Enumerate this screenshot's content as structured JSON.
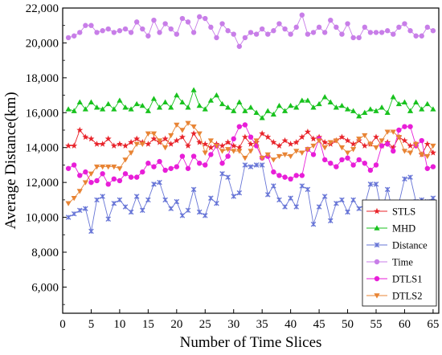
{
  "chart_data": {
    "type": "line",
    "title": "",
    "xlabel": "Number of Time Slices",
    "ylabel": "Average Distance(km)",
    "xlim": [
      0,
      66
    ],
    "ylim": [
      4500,
      22000
    ],
    "xticks": [
      0,
      5,
      10,
      15,
      20,
      25,
      30,
      35,
      40,
      45,
      50,
      55,
      60,
      65
    ],
    "yticks": [
      6000,
      8000,
      10000,
      12000,
      14000,
      16000,
      18000,
      20000,
      22000
    ],
    "ytick_labels": [
      "6,000",
      "8,000",
      "10,000",
      "12,000",
      "14,000",
      "16,000",
      "18,000",
      "20,000",
      "22,000"
    ],
    "grid": false,
    "legend": "bottom-right",
    "x": [
      1,
      2,
      3,
      4,
      5,
      6,
      7,
      8,
      9,
      10,
      11,
      12,
      13,
      14,
      15,
      16,
      17,
      18,
      19,
      20,
      21,
      22,
      23,
      24,
      25,
      26,
      27,
      28,
      29,
      30,
      31,
      32,
      33,
      34,
      35,
      36,
      37,
      38,
      39,
      40,
      41,
      42,
      43,
      44,
      45,
      46,
      47,
      48,
      49,
      50,
      51,
      52,
      53,
      54,
      55,
      56,
      57,
      58,
      59,
      60,
      61,
      62,
      63,
      64,
      65
    ],
    "series": [
      {
        "name": "STLS",
        "color": "#e8232a",
        "marker": "star",
        "values": [
          14100,
          14100,
          15000,
          14600,
          14500,
          14200,
          14200,
          14500,
          14100,
          14200,
          14100,
          14300,
          14500,
          14300,
          14200,
          14500,
          14300,
          14500,
          14200,
          14400,
          14600,
          14100,
          14800,
          14300,
          14200,
          14000,
          14200,
          14100,
          14300,
          14100,
          14000,
          14600,
          14200,
          14300,
          14800,
          14600,
          14300,
          14100,
          14400,
          14200,
          14300,
          14600,
          14900,
          14500,
          14600,
          14300,
          14200,
          14400,
          14600,
          14400,
          14200,
          14400,
          14100,
          14200,
          14600,
          14100,
          14300,
          14000,
          14600,
          14400,
          14100,
          14200,
          13600,
          14200,
          13700
        ]
      },
      {
        "name": "MHD",
        "color": "#18c21e",
        "marker": "triangle-up",
        "values": [
          16200,
          16100,
          16600,
          16200,
          16600,
          16300,
          16200,
          16500,
          16200,
          16700,
          16300,
          16200,
          16500,
          16400,
          16100,
          16800,
          16300,
          16600,
          16300,
          17000,
          16600,
          16300,
          17300,
          16400,
          16200,
          16700,
          17000,
          16500,
          16300,
          16100,
          16600,
          16100,
          16300,
          16000,
          15700,
          16100,
          15900,
          16400,
          16100,
          16400,
          16300,
          16700,
          16700,
          16300,
          16500,
          16900,
          16600,
          16300,
          16400,
          16200,
          16100,
          15800,
          16000,
          16200,
          16100,
          16300,
          16000,
          16900,
          16500,
          16600,
          16100,
          16600,
          16200,
          16500,
          16200
        ]
      },
      {
        "name": "Distance",
        "color": "#6674d6",
        "marker": "x-cross",
        "values": [
          10000,
          10200,
          10400,
          10500,
          9200,
          11000,
          11200,
          9900,
          10800,
          11000,
          10600,
          10300,
          11200,
          10400,
          11000,
          11900,
          12000,
          11000,
          10500,
          10900,
          10100,
          10400,
          11600,
          10300,
          10100,
          11100,
          10800,
          12500,
          12300,
          11200,
          11400,
          13000,
          12900,
          13000,
          13000,
          11300,
          11800,
          11000,
          10600,
          11100,
          10600,
          11800,
          11600,
          9600,
          10600,
          11200,
          9800,
          10800,
          11000,
          10300,
          11000,
          10500,
          10700,
          11900,
          11900,
          10300,
          11600,
          10200,
          10800,
          12200,
          12300,
          10900,
          11000,
          10900,
          11100
        ]
      },
      {
        "name": "Time",
        "color": "#c87ee8",
        "marker": "circle",
        "values": [
          20300,
          20400,
          20600,
          21000,
          21000,
          20600,
          20700,
          20800,
          20600,
          20700,
          20800,
          20600,
          21200,
          20800,
          20400,
          21300,
          20600,
          21100,
          20800,
          20500,
          21400,
          21200,
          20600,
          21500,
          21400,
          20900,
          20300,
          21100,
          20700,
          20500,
          19800,
          20300,
          20600,
          20500,
          20800,
          20500,
          20700,
          21100,
          20800,
          20500,
          20900,
          21600,
          20500,
          20600,
          20900,
          20600,
          21300,
          20900,
          20500,
          21100,
          20300,
          20300,
          20900,
          20600,
          20600,
          20600,
          20700,
          20500,
          20900,
          21100,
          20700,
          20400,
          20400,
          20900,
          20700
        ]
      },
      {
        "name": "DTLS1",
        "color": "#e81ed8",
        "marker": "circle",
        "values": [
          12800,
          13000,
          12400,
          12600,
          12000,
          12100,
          12500,
          11900,
          12200,
          12100,
          12500,
          12300,
          12300,
          12600,
          13100,
          12900,
          13200,
          12700,
          12800,
          12900,
          13500,
          12800,
          13500,
          13100,
          13000,
          13600,
          14100,
          13100,
          13500,
          14500,
          15200,
          15300,
          14600,
          14100,
          13400,
          13500,
          12600,
          12400,
          12300,
          12200,
          12400,
          12400,
          13900,
          13600,
          14500,
          13300,
          13100,
          12900,
          13300,
          13400,
          13000,
          13300,
          13100,
          12700,
          13000,
          14100,
          14200,
          13800,
          15000,
          15200,
          15200,
          14100,
          14400,
          12800,
          12900
        ]
      },
      {
        "name": "DTLS2",
        "color": "#e88434",
        "marker": "triangle-down",
        "values": [
          10800,
          11100,
          11500,
          12000,
          12500,
          12900,
          12900,
          12900,
          12900,
          12800,
          13300,
          13700,
          14200,
          14200,
          14800,
          14800,
          14400,
          14000,
          14700,
          15300,
          15000,
          15400,
          15200,
          14800,
          13700,
          14400,
          14100,
          13800,
          13900,
          13800,
          13800,
          13400,
          13800,
          14400,
          13400,
          13600,
          13300,
          13500,
          13600,
          13500,
          13800,
          13700,
          13900,
          14100,
          14400,
          14000,
          14300,
          14400,
          14000,
          13700,
          13900,
          14500,
          14700,
          14200,
          14000,
          14400,
          14900,
          14900,
          14600,
          13800,
          13700,
          14200,
          13600,
          13500,
          14100
        ]
      }
    ]
  }
}
